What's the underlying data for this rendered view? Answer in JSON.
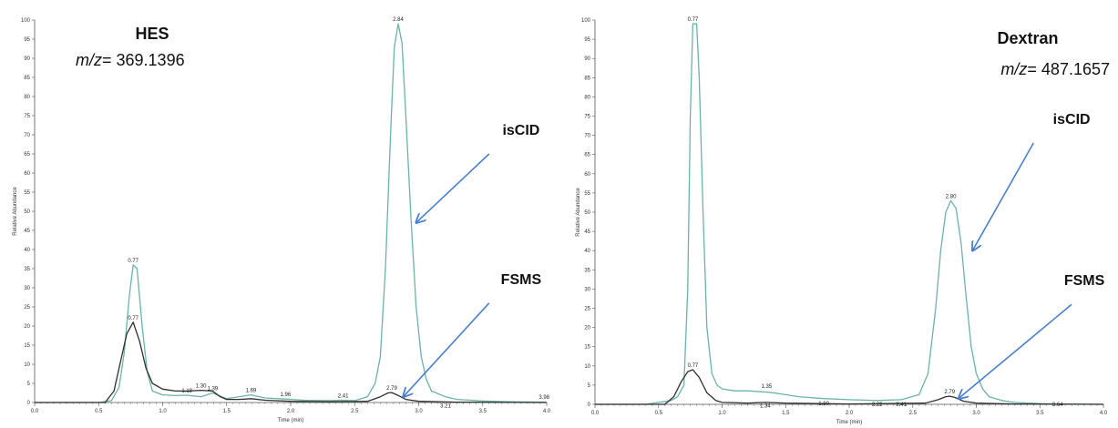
{
  "colors": {
    "teal": "#6bb3a9",
    "dark": "#2f2f2f",
    "arrow": "#4a7fd0",
    "axis": "#555555"
  },
  "chart_data": [
    {
      "type": "line",
      "title": "HES",
      "subtitle_prefix": "m/z",
      "subtitle_value": "= 369.1396",
      "xlabel": "Time (min)",
      "ylabel": "Relative Abundance",
      "xlim": [
        0.0,
        4.0
      ],
      "ylim": [
        0,
        100
      ],
      "x_ticks": [
        "0.0",
        "0.5",
        "1.0",
        "1.5",
        "2.0",
        "2.5",
        "3.0",
        "3.5",
        "4.0"
      ],
      "y_ticks": [
        "0",
        "5",
        "10",
        "15",
        "20",
        "25",
        "30",
        "35",
        "40",
        "45",
        "50",
        "55",
        "60",
        "65",
        "70",
        "75",
        "80",
        "85",
        "90",
        "95",
        "100"
      ],
      "series": [
        {
          "color": "#6bb3a9",
          "x": [
            0,
            0.5,
            0.6,
            0.66,
            0.7,
            0.74,
            0.77,
            0.8,
            0.84,
            0.88,
            0.92,
            1.0,
            1.1,
            1.19,
            1.3,
            1.39,
            1.5,
            1.69,
            1.8,
            1.96,
            2.1,
            2.3,
            2.41,
            2.5,
            2.6,
            2.66,
            2.7,
            2.74,
            2.78,
            2.81,
            2.84,
            2.87,
            2.9,
            2.94,
            2.98,
            3.02,
            3.06,
            3.1,
            3.21,
            3.3,
            3.5,
            3.7,
            3.98,
            4.0
          ],
          "y": [
            0,
            0,
            0.5,
            4,
            13,
            28,
            36,
            35,
            20,
            8,
            3,
            2,
            1.8,
            1.9,
            1.5,
            2.5,
            1,
            2,
            1.2,
            0.9,
            0.6,
            0.5,
            0.6,
            0.5,
            1.5,
            5,
            12,
            35,
            70,
            93,
            99,
            94,
            75,
            48,
            25,
            12,
            6,
            3,
            1.5,
            0.8,
            0.4,
            0.2,
            0.1,
            0
          ]
        },
        {
          "color": "#2f2f2f",
          "x": [
            0,
            0.55,
            0.62,
            0.68,
            0.72,
            0.77,
            0.82,
            0.87,
            0.92,
            1.0,
            1.1,
            1.2,
            1.3,
            1.39,
            1.45,
            1.5,
            1.6,
            1.69,
            1.8,
            2.0,
            2.3,
            2.6,
            2.7,
            2.76,
            2.79,
            2.83,
            2.9,
            3.0,
            3.3,
            4.0
          ],
          "y": [
            0,
            0,
            3,
            12,
            18,
            21,
            16,
            9,
            5,
            3.5,
            3,
            3,
            3.2,
            3,
            1.5,
            0.8,
            0.8,
            1,
            0.6,
            0.3,
            0.2,
            0.3,
            1.5,
            2.5,
            2.6,
            2,
            0.8,
            0.3,
            0.1,
            0
          ]
        }
      ],
      "peak_labels": [
        {
          "x": 0.77,
          "y": 36,
          "text": "0.77"
        },
        {
          "x": 0.77,
          "y": 21,
          "text": "0.77"
        },
        {
          "x": 1.19,
          "y": 1.9,
          "text": "1.19"
        },
        {
          "x": 1.3,
          "y": 3.2,
          "text": "1.30"
        },
        {
          "x": 1.39,
          "y": 2.5,
          "text": "1.39"
        },
        {
          "x": 1.69,
          "y": 2.0,
          "text": "1.69"
        },
        {
          "x": 1.96,
          "y": 0.9,
          "text": "1.96"
        },
        {
          "x": 2.41,
          "y": 0.6,
          "text": "2.41"
        },
        {
          "x": 2.79,
          "y": 2.6,
          "text": "2.79"
        },
        {
          "x": 2.84,
          "y": 99,
          "text": "2.84"
        },
        {
          "x": 3.21,
          "y": -2,
          "text": "3.21"
        },
        {
          "x": 3.98,
          "y": 0.2,
          "text": "3.98"
        }
      ],
      "annotations": [
        {
          "text": "isCID",
          "label_x": 3.8,
          "label_y": 70,
          "from_x": 3.55,
          "from_y": 65,
          "to_x": 2.98,
          "to_y": 47
        },
        {
          "text": "FSMS",
          "label_x": 3.8,
          "label_y": 31,
          "from_x": 3.55,
          "from_y": 26,
          "to_x": 2.88,
          "to_y": 1.5
        }
      ]
    },
    {
      "type": "line",
      "title": "Dextran",
      "subtitle_prefix": "m/z",
      "subtitle_value": "= 487.1657",
      "xlabel": "Time (min)",
      "ylabel": "Relative Abundance",
      "xlim": [
        0.0,
        4.0
      ],
      "ylim": [
        0,
        100
      ],
      "x_ticks": [
        "0.0",
        "0.5",
        "1.0",
        "1.5",
        "2.0",
        "2.5",
        "3.0",
        "3.5",
        "4.0"
      ],
      "y_ticks": [
        "0",
        "5",
        "10",
        "15",
        "20",
        "25",
        "30",
        "35",
        "40",
        "45",
        "50",
        "55",
        "60",
        "65",
        "70",
        "75",
        "80",
        "85",
        "90",
        "95",
        "100"
      ],
      "series": [
        {
          "color": "#6bb3a9",
          "x": [
            0,
            0.4,
            0.5,
            0.6,
            0.65,
            0.7,
            0.73,
            0.75,
            0.77,
            0.8,
            0.82,
            0.85,
            0.88,
            0.92,
            0.96,
            1.0,
            1.1,
            1.2,
            1.34,
            1.4,
            1.5,
            1.6,
            1.8,
            2.0,
            2.22,
            2.41,
            2.55,
            2.62,
            2.68,
            2.72,
            2.76,
            2.8,
            2.84,
            2.88,
            2.92,
            2.96,
            3.0,
            3.05,
            3.1,
            3.2,
            3.3,
            3.5,
            3.64,
            4.0
          ],
          "y": [
            0,
            0,
            0.5,
            1,
            2,
            5,
            30,
            75,
            99,
            99,
            85,
            50,
            20,
            8,
            5,
            4,
            3.5,
            3.5,
            3.2,
            3,
            2.5,
            2,
            1.5,
            1.2,
            1,
            1.2,
            2.5,
            8,
            25,
            40,
            50,
            53,
            51,
            42,
            28,
            15,
            8,
            4,
            2,
            1,
            0.5,
            0.2,
            0.1,
            0
          ]
        },
        {
          "color": "#2f2f2f",
          "x": [
            0,
            0.55,
            0.62,
            0.68,
            0.73,
            0.77,
            0.82,
            0.88,
            0.95,
            1.0,
            1.2,
            1.34,
            1.5,
            2.0,
            2.6,
            2.7,
            2.76,
            2.79,
            2.83,
            2.9,
            3.0,
            3.3,
            4.0
          ],
          "y": [
            0,
            0,
            2,
            6,
            8.5,
            9,
            7,
            3,
            1,
            0.5,
            0.3,
            0.5,
            0.3,
            0.1,
            0.3,
            1.2,
            2,
            2.1,
            1.8,
            0.8,
            0.3,
            0.1,
            0
          ]
        }
      ],
      "peak_labels": [
        {
          "x": 0.77,
          "y": 99,
          "text": "0.77"
        },
        {
          "x": 0.77,
          "y": 9,
          "text": "0.77"
        },
        {
          "x": 1.35,
          "y": 3.5,
          "text": "1.35"
        },
        {
          "x": 1.34,
          "y": -1.5,
          "text": "1.34"
        },
        {
          "x": 1.8,
          "y": -1,
          "text": "1.80"
        },
        {
          "x": 2.22,
          "y": -1.2,
          "text": "2.22"
        },
        {
          "x": 2.41,
          "y": -1.2,
          "text": "2.41"
        },
        {
          "x": 2.79,
          "y": 2.1,
          "text": "2.79"
        },
        {
          "x": 2.8,
          "y": 53,
          "text": "2.80"
        },
        {
          "x": 3.64,
          "y": -1.2,
          "text": "3.64"
        }
      ],
      "annotations": [
        {
          "text": "isCID",
          "label_x": 3.75,
          "label_y": 73,
          "from_x": 3.45,
          "from_y": 68,
          "to_x": 2.97,
          "to_y": 40
        },
        {
          "text": "FSMS",
          "label_x": 3.85,
          "label_y": 31,
          "from_x": 3.75,
          "from_y": 26,
          "to_x": 2.86,
          "to_y": 1.5
        }
      ]
    }
  ]
}
